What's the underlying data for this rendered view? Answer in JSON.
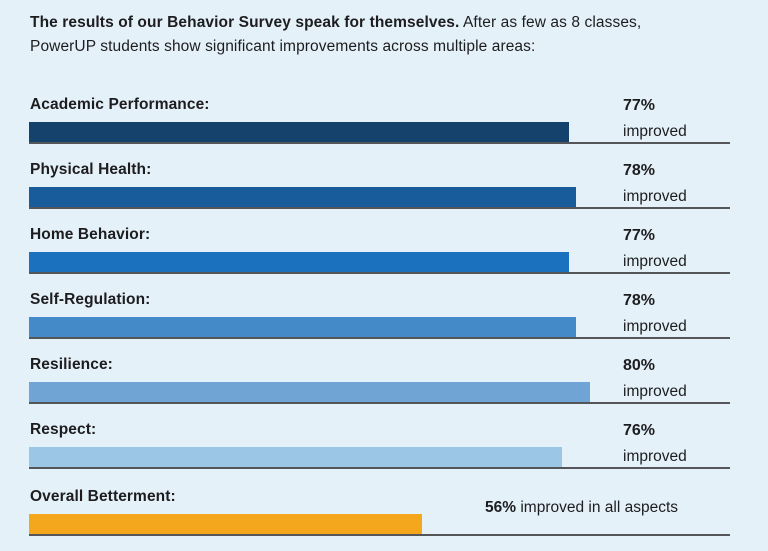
{
  "page": {
    "background_color": "#e4f1f9",
    "divider_line_color": "#55565a",
    "text_color": "#1d1d1f"
  },
  "header": {
    "bold_text": "The results of our Behavior Survey speak for themselves.",
    "rest_line1": " After as few as 8 classes,",
    "line2": "PowerUP students show significant improvements across multiple areas:"
  },
  "chart_data": {
    "type": "bar",
    "orientation": "horizontal",
    "title": "Behavior Survey results",
    "xlim": [
      0,
      100
    ],
    "unit": "%",
    "grid": false,
    "legend": false,
    "categories": [
      "Academic Performance",
      "Physical Health",
      "Home Behavior",
      "Self-Regulation",
      "Resilience",
      "Respect",
      "Overall Betterment"
    ],
    "values": [
      77,
      78,
      77,
      78,
      80,
      76,
      56
    ],
    "bar_colors": [
      "#14426c",
      "#195c9b",
      "#1b71bd",
      "#4489c8",
      "#6fa4d5",
      "#9cc6e5",
      "#f4a71d"
    ],
    "rows": [
      {
        "label": "Academic Performance:",
        "pct": 77,
        "value_label": "77%",
        "sub_label": "improved",
        "color": "#14426c",
        "inline": false
      },
      {
        "label": "Physical Health:",
        "pct": 78,
        "value_label": "78%",
        "sub_label": "improved",
        "color": "#195c9b",
        "inline": false
      },
      {
        "label": "Home Behavior:",
        "pct": 77,
        "value_label": "77%",
        "sub_label": "improved",
        "color": "#1b71bd",
        "inline": false
      },
      {
        "label": "Self-Regulation:",
        "pct": 78,
        "value_label": "78%",
        "sub_label": "improved",
        "color": "#4489c8",
        "inline": false
      },
      {
        "label": "Resilience:",
        "pct": 80,
        "value_label": "80%",
        "sub_label": "improved",
        "color": "#6fa4d5",
        "inline": false
      },
      {
        "label": "Respect:",
        "pct": 76,
        "value_label": "76%",
        "sub_label": "improved",
        "color": "#9cc6e5",
        "inline": false
      },
      {
        "label": "Overall Betterment:",
        "pct": 56,
        "value_label": "56%",
        "sub_label": " improved in all aspects",
        "color": "#f4a71d",
        "inline": true
      }
    ]
  }
}
